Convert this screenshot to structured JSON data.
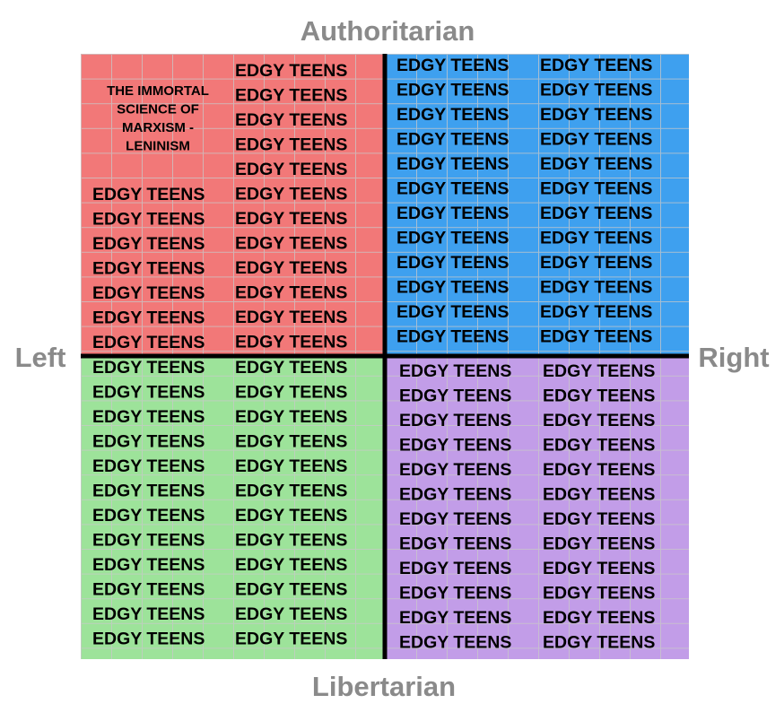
{
  "axes": {
    "top": "Authoritarian",
    "bottom": "Libertarian",
    "left": "Left",
    "right": "Right"
  },
  "quadrants": {
    "top_left": {
      "note": [
        "THE IMMORTAL",
        "SCIENCE OF",
        "MARXISM -",
        "LENINISM"
      ],
      "columns": [
        [
          "EDGY TEENS",
          "EDGY TEENS",
          "EDGY TEENS",
          "EDGY TEENS",
          "EDGY TEENS",
          "EDGY TEENS",
          "EDGY TEENS"
        ],
        [
          "EDGY TEENS",
          "EDGY TEENS",
          "EDGY TEENS",
          "EDGY TEENS",
          "EDGY TEENS",
          "EDGY TEENS",
          "EDGY TEENS",
          "EDGY TEENS",
          "EDGY TEENS",
          "EDGY TEENS",
          "EDGY TEENS",
          "EDGY TEENS"
        ]
      ]
    },
    "top_right": {
      "columns": [
        [
          "EDGY TEENS",
          "EDGY TEENS",
          "EDGY TEENS",
          "EDGY TEENS",
          "EDGY TEENS",
          "EDGY TEENS",
          "EDGY TEENS",
          "EDGY TEENS",
          "EDGY TEENS",
          "EDGY TEENS",
          "EDGY TEENS",
          "EDGY TEENS"
        ],
        [
          "EDGY TEENS",
          "EDGY TEENS",
          "EDGY TEENS",
          "EDGY TEENS",
          "EDGY TEENS",
          "EDGY TEENS",
          "EDGY TEENS",
          "EDGY TEENS",
          "EDGY TEENS",
          "EDGY TEENS",
          "EDGY TEENS",
          "EDGY TEENS"
        ]
      ]
    },
    "bottom_left": {
      "columns": [
        [
          "EDGY TEENS",
          "EDGY TEENS",
          "EDGY TEENS",
          "EDGY TEENS",
          "EDGY TEENS",
          "EDGY TEENS",
          "EDGY TEENS",
          "EDGY TEENS",
          "EDGY TEENS",
          "EDGY TEENS",
          "EDGY TEENS",
          "EDGY TEENS"
        ],
        [
          "EDGY TEENS",
          "EDGY TEENS",
          "EDGY TEENS",
          "EDGY TEENS",
          "EDGY TEENS",
          "EDGY TEENS",
          "EDGY TEENS",
          "EDGY TEENS",
          "EDGY TEENS",
          "EDGY TEENS",
          "EDGY TEENS",
          "EDGY TEENS"
        ]
      ]
    },
    "bottom_right": {
      "columns": [
        [
          "EDGY TEENS",
          "EDGY TEENS",
          "EDGY TEENS",
          "EDGY TEENS",
          "EDGY TEENS",
          "EDGY TEENS",
          "EDGY TEENS",
          "EDGY TEENS",
          "EDGY TEENS",
          "EDGY TEENS",
          "EDGY TEENS",
          "EDGY TEENS"
        ],
        [
          "EDGY TEENS",
          "EDGY TEENS",
          "EDGY TEENS",
          "EDGY TEENS",
          "EDGY TEENS",
          "EDGY TEENS",
          "EDGY TEENS",
          "EDGY TEENS",
          "EDGY TEENS",
          "EDGY TEENS",
          "EDGY TEENS",
          "EDGY TEENS"
        ]
      ]
    }
  }
}
